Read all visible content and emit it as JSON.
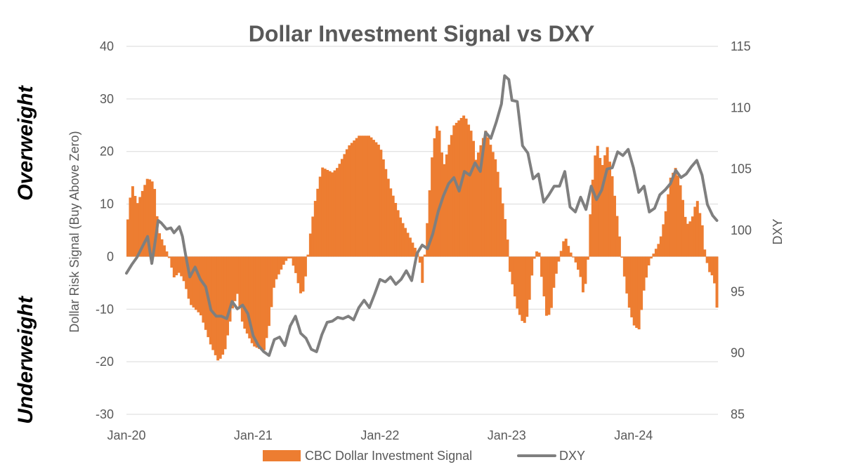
{
  "chart_data": {
    "type": "bar+line",
    "title": "Dollar Investment Signal vs DXY",
    "side_labels": {
      "upper": "Overweight",
      "lower": "Underweight"
    },
    "ylabel_left": "Dollar Risk Signal  (Buy Above Zero)",
    "ylabel_right": "DXY",
    "ylim_left": [
      -30,
      40
    ],
    "ylim_right": [
      85,
      115
    ],
    "yticks_left": [
      "40",
      "30",
      "20",
      "10",
      "0",
      "-10",
      "-20",
      "-30"
    ],
    "yticks_right": [
      "115",
      "110",
      "105",
      "100",
      "95",
      "90",
      "85"
    ],
    "x_range_months": [
      0,
      56
    ],
    "xtick_labels": [
      {
        "label": "Jan-20",
        "month": 0
      },
      {
        "label": "Jan-21",
        "month": 12
      },
      {
        "label": "Jan-22",
        "month": 24
      },
      {
        "label": "Jan-23",
        "month": 36
      },
      {
        "label": "Jan-24",
        "month": 48
      }
    ],
    "grid": true,
    "legend_position": "bottom",
    "series": [
      {
        "name": "CBC Dollar Investment Signal",
        "kind": "bar",
        "color": "#ED7D31",
        "axis": "left",
        "keypoints": [
          [
            0,
            5
          ],
          [
            0.5,
            14
          ],
          [
            1,
            10
          ],
          [
            2,
            15
          ],
          [
            2.6,
            14
          ],
          [
            3,
            5
          ],
          [
            4,
            0
          ],
          [
            4.5,
            -4
          ],
          [
            5,
            -3
          ],
          [
            5.5,
            -5
          ],
          [
            6,
            -9
          ],
          [
            7,
            -11
          ],
          [
            8,
            -17
          ],
          [
            8.7,
            -20
          ],
          [
            9.3,
            -18
          ],
          [
            10,
            -10
          ],
          [
            10.5,
            -7
          ],
          [
            11,
            -13
          ],
          [
            12,
            -17
          ],
          [
            13,
            -18
          ],
          [
            13.5,
            -13
          ],
          [
            14,
            -5
          ],
          [
            15,
            -1
          ],
          [
            15.5,
            0
          ],
          [
            16,
            -3
          ],
          [
            16.6,
            -8
          ],
          [
            17,
            -3
          ],
          [
            17.3,
            3
          ],
          [
            17.8,
            10
          ],
          [
            18.5,
            17
          ],
          [
            19.5,
            16
          ],
          [
            20,
            17
          ],
          [
            21,
            21
          ],
          [
            22,
            23
          ],
          [
            23,
            23
          ],
          [
            24,
            21
          ],
          [
            25,
            13
          ],
          [
            26,
            7
          ],
          [
            27,
            3
          ],
          [
            27.7,
            0
          ],
          [
            28,
            -5
          ],
          [
            28.3,
            2
          ],
          [
            29,
            21
          ],
          [
            29.5,
            26
          ],
          [
            30,
            17
          ],
          [
            31,
            25
          ],
          [
            32,
            27
          ],
          [
            32.8,
            23
          ],
          [
            33,
            18
          ],
          [
            34,
            24
          ],
          [
            35,
            18
          ],
          [
            36,
            5
          ],
          [
            36.3,
            -3
          ],
          [
            37,
            -10
          ],
          [
            37.6,
            -13
          ],
          [
            38,
            -11
          ],
          [
            38.5,
            -1
          ],
          [
            39,
            2
          ],
          [
            39.3,
            -4
          ],
          [
            39.8,
            -12
          ],
          [
            40.2,
            -10
          ],
          [
            40.5,
            -5
          ],
          [
            41,
            0
          ],
          [
            41.5,
            4
          ],
          [
            42,
            1
          ],
          [
            42.5,
            -1
          ],
          [
            43,
            -4
          ],
          [
            43.3,
            -8
          ],
          [
            43.7,
            0
          ],
          [
            44,
            12
          ],
          [
            44.5,
            22
          ],
          [
            45,
            17
          ],
          [
            45.5,
            21
          ],
          [
            46,
            15
          ],
          [
            46.6,
            5
          ],
          [
            47,
            -2
          ],
          [
            47.5,
            -9
          ],
          [
            48,
            -13
          ],
          [
            48.5,
            -14
          ],
          [
            49,
            -6
          ],
          [
            49.5,
            -1
          ],
          [
            50,
            1
          ],
          [
            50.5,
            3
          ],
          [
            51,
            8
          ],
          [
            51.5,
            15
          ],
          [
            52,
            17
          ],
          [
            52.5,
            13
          ],
          [
            53,
            6
          ],
          [
            53.5,
            7
          ],
          [
            54,
            11
          ],
          [
            54.5,
            6
          ],
          [
            54.8,
            0
          ],
          [
            55.2,
            -3
          ],
          [
            55.6,
            -4
          ],
          [
            55.9,
            -10
          ]
        ]
      },
      {
        "name": "DXY",
        "kind": "line",
        "color": "#7F7F7F",
        "axis": "right",
        "keypoints": [
          [
            0,
            96.5
          ],
          [
            0.5,
            97.2
          ],
          [
            1,
            97.8
          ],
          [
            2,
            99.5
          ],
          [
            2.4,
            97.3
          ],
          [
            2.7,
            99
          ],
          [
            3,
            100.8
          ],
          [
            3.3,
            100.6
          ],
          [
            3.8,
            100.1
          ],
          [
            4.2,
            100.2
          ],
          [
            4.5,
            99.8
          ],
          [
            5,
            100.3
          ],
          [
            5.3,
            99.5
          ],
          [
            5.6,
            98
          ],
          [
            6,
            96.2
          ],
          [
            6.5,
            97
          ],
          [
            7,
            96
          ],
          [
            7.5,
            95.4
          ],
          [
            8,
            93.5
          ],
          [
            8.5,
            93
          ],
          [
            9,
            93
          ],
          [
            9.5,
            92.8
          ],
          [
            10,
            94.2
          ],
          [
            10.5,
            93.6
          ],
          [
            11,
            93.9
          ],
          [
            11.5,
            93.2
          ],
          [
            12,
            91.4
          ],
          [
            12.5,
            90.6
          ],
          [
            13,
            90.1
          ],
          [
            13.5,
            89.8
          ],
          [
            14,
            91.1
          ],
          [
            14.5,
            91.3
          ],
          [
            15,
            90.6
          ],
          [
            15.5,
            92.2
          ],
          [
            16,
            93
          ],
          [
            16.5,
            91.6
          ],
          [
            17,
            91.2
          ],
          [
            17.5,
            90.3
          ],
          [
            18,
            90.1
          ],
          [
            18.5,
            91.5
          ],
          [
            19,
            92.5
          ],
          [
            19.5,
            92.6
          ],
          [
            20,
            92.9
          ],
          [
            20.5,
            92.8
          ],
          [
            21,
            93
          ],
          [
            21.5,
            92.7
          ],
          [
            22,
            93.7
          ],
          [
            22.5,
            94.3
          ],
          [
            23,
            93.7
          ],
          [
            23.5,
            94.8
          ],
          [
            24,
            96
          ],
          [
            24.5,
            95.8
          ],
          [
            25,
            96.2
          ],
          [
            25.5,
            95.6
          ],
          [
            26,
            96
          ],
          [
            26.5,
            96.7
          ],
          [
            27,
            95.9
          ],
          [
            27.5,
            98.1
          ],
          [
            28,
            98.8
          ],
          [
            28.5,
            98.5
          ],
          [
            29,
            99.7
          ],
          [
            29.5,
            101.5
          ],
          [
            30,
            102.8
          ],
          [
            30.5,
            103.8
          ],
          [
            31,
            104.3
          ],
          [
            31.5,
            103.2
          ],
          [
            32,
            104.8
          ],
          [
            32.5,
            104.5
          ],
          [
            33,
            105.5
          ],
          [
            33.5,
            104.8
          ],
          [
            34,
            108
          ],
          [
            34.5,
            107.5
          ],
          [
            35,
            108.8
          ],
          [
            35.5,
            110.3
          ],
          [
            35.8,
            112.6
          ],
          [
            36.2,
            112.3
          ],
          [
            36.5,
            110.6
          ],
          [
            37,
            110.5
          ],
          [
            37.5,
            106.9
          ],
          [
            38,
            106.3
          ],
          [
            38.5,
            104.2
          ],
          [
            39,
            104.6
          ],
          [
            39.5,
            102.3
          ],
          [
            40,
            102.9
          ],
          [
            40.5,
            103.6
          ],
          [
            41,
            103.6
          ],
          [
            41.5,
            104.8
          ],
          [
            42,
            101.9
          ],
          [
            42.5,
            101.5
          ],
          [
            43,
            102.7
          ],
          [
            43.5,
            101.7
          ],
          [
            44,
            103.6
          ],
          [
            44.5,
            102.5
          ],
          [
            45,
            103.3
          ],
          [
            45.5,
            105
          ],
          [
            46,
            105.1
          ],
          [
            46.5,
            106.4
          ],
          [
            47,
            106.1
          ],
          [
            47.5,
            106.6
          ],
          [
            48,
            105.1
          ],
          [
            48.5,
            103.1
          ],
          [
            49,
            103.6
          ],
          [
            49.5,
            101.5
          ],
          [
            50,
            101.8
          ],
          [
            50.5,
            102.9
          ],
          [
            51,
            103.3
          ],
          [
            51.5,
            103.8
          ],
          [
            52,
            104.9
          ],
          [
            52.5,
            104.3
          ],
          [
            53,
            104.6
          ],
          [
            53.5,
            105.2
          ],
          [
            54,
            105.7
          ],
          [
            54.5,
            104.5
          ],
          [
            55,
            102.1
          ],
          [
            55.5,
            101.2
          ],
          [
            55.9,
            100.8
          ]
        ]
      }
    ]
  }
}
